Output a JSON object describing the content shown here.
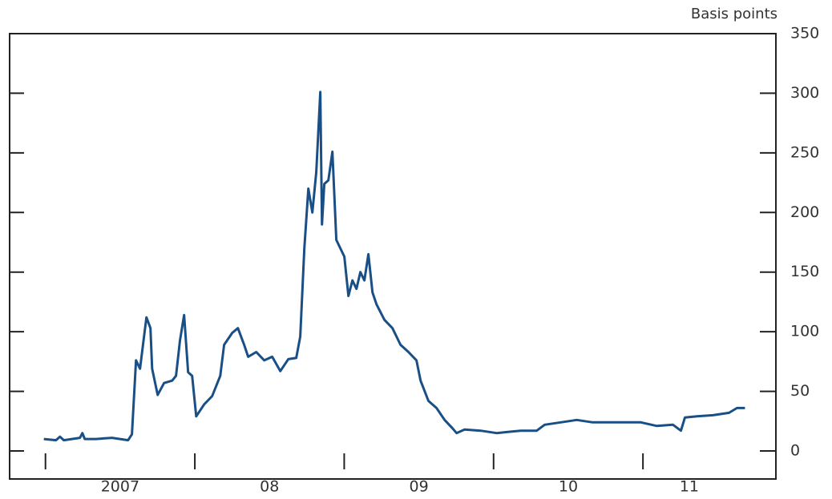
{
  "chart_data": {
    "type": "line",
    "y_label": "Basis points",
    "x": [
      2006.989,
      2007.07,
      2007.097,
      2007.123,
      2007.177,
      2007.231,
      2007.247,
      2007.263,
      2007.338,
      2007.445,
      2007.553,
      2007.579,
      2007.606,
      2007.633,
      2007.66,
      2007.676,
      2007.703,
      2007.714,
      2007.751,
      2007.794,
      2007.848,
      2007.874,
      2007.901,
      2007.928,
      2007.955,
      2007.982,
      2008.009,
      2008.062,
      2008.116,
      2008.17,
      2008.196,
      2008.25,
      2008.288,
      2008.33,
      2008.357,
      2008.411,
      2008.465,
      2008.518,
      2008.572,
      2008.626,
      2008.679,
      2008.706,
      2008.733,
      2008.76,
      2008.787,
      2008.813,
      2008.84,
      2008.851,
      2008.867,
      2008.894,
      2008.921,
      2008.947,
      2008.974,
      2009.001,
      2009.028,
      2009.055,
      2009.082,
      2009.108,
      2009.135,
      2009.162,
      2009.189,
      2009.216,
      2009.269,
      2009.323,
      2009.377,
      2009.43,
      2009.484,
      2009.511,
      2009.564,
      2009.618,
      2009.672,
      2009.725,
      2009.752,
      2009.806,
      2009.913,
      2010.02,
      2010.181,
      2010.289,
      2010.342,
      2010.45,
      2010.557,
      2010.664,
      2010.771,
      2010.879,
      2010.986,
      2011.093,
      2011.201,
      2011.254,
      2011.281,
      2011.362,
      2011.469,
      2011.576,
      2011.63,
      2011.683
    ],
    "series": [
      {
        "color": "#1a4f86",
        "values": [
          10,
          9,
          12,
          9,
          10,
          11,
          15,
          10,
          10,
          11,
          9,
          14,
          76,
          69,
          96,
          112,
          103,
          69,
          47,
          57,
          59,
          63,
          93,
          114,
          66,
          63,
          29,
          39,
          46,
          63,
          89,
          99,
          103,
          89,
          79,
          83,
          76,
          79,
          67,
          77,
          78,
          96,
          170,
          220,
          200,
          234,
          301,
          190,
          224,
          227,
          251,
          177,
          170,
          163,
          130,
          143,
          136,
          150,
          143,
          165,
          133,
          123,
          110,
          103,
          89,
          83,
          76,
          59,
          42,
          36,
          26,
          19,
          15,
          18,
          17,
          15,
          17,
          17,
          22,
          24,
          26,
          24,
          24,
          24,
          24,
          21,
          22,
          17,
          28,
          29,
          30,
          32,
          36,
          36
        ]
      }
    ],
    "xlim": [
      2006.76,
      2011.89
    ],
    "ylim": [
      -23.5,
      350
    ],
    "yticks": [
      0,
      50,
      100,
      150,
      200,
      250,
      300,
      350
    ],
    "xticks": [
      {
        "value": 2007.5,
        "label": "2007"
      },
      {
        "value": 2008.5,
        "label": "08"
      },
      {
        "value": 2009.5,
        "label": "09"
      },
      {
        "value": 2010.5,
        "label": "10"
      },
      {
        "value": 2011.31,
        "label": "11"
      }
    ],
    "x_tick_marks": [
      2007,
      2008,
      2009,
      2010,
      2011
    ]
  }
}
